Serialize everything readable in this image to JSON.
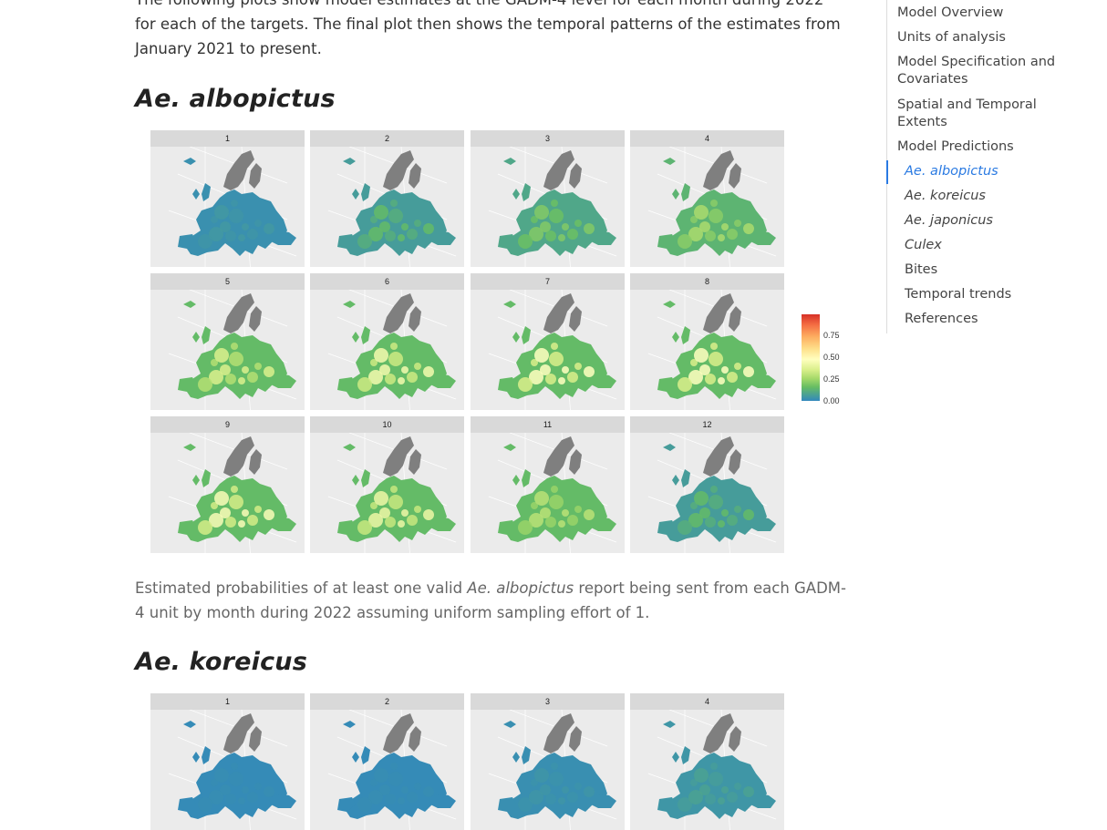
{
  "intro_text": "The following plots show model estimates at the GADM-4 level for each month during 2022 for each of the targets. The final plot then shows the temporal patterns of the estimates from January 2021 to present.",
  "sections": [
    {
      "heading": "Ae. albopictus",
      "panel_labels": [
        "1",
        "2",
        "3",
        "4",
        "5",
        "6",
        "7",
        "8",
        "9",
        "10",
        "11",
        "12"
      ],
      "probability_level_by_month": [
        0.05,
        0.12,
        0.18,
        0.26,
        0.38,
        0.46,
        0.5,
        0.5,
        0.48,
        0.44,
        0.3,
        0.12
      ],
      "caption_before": "Estimated probabilities of at least one valid ",
      "caption_species": "Ae. albopictus",
      "caption_after": " report being sent from each GADM-4 unit by month during 2022 assuming uniform sampling effort of 1."
    },
    {
      "heading": "Ae. koreicus",
      "panel_labels": [
        "1",
        "2",
        "3",
        "4"
      ],
      "probability_level_by_month": [
        0.02,
        0.02,
        0.04,
        0.08
      ]
    }
  ],
  "legend": {
    "ticks": [
      "0.75",
      "0.50",
      "0.25",
      "0.00"
    ],
    "color_scale": [
      "#3288bd",
      "#66bd63",
      "#a6d96a",
      "#d9ef8b",
      "#ffffbf",
      "#fee08b",
      "#fdae61",
      "#f46d43",
      "#d73027"
    ]
  },
  "toc": {
    "items": [
      {
        "label": "Model Overview",
        "level": 1
      },
      {
        "label": "Units of analysis",
        "level": 1
      },
      {
        "label": "Model Specification and Covariates",
        "level": 1
      },
      {
        "label": "Spatial and Temporal Extents",
        "level": 1
      },
      {
        "label": "Model Predictions",
        "level": 1
      },
      {
        "label": "Ae. albopictus",
        "level": 2,
        "italic": true,
        "active": true
      },
      {
        "label": "Ae. koreicus",
        "level": 2,
        "italic": true
      },
      {
        "label": "Ae. japonicus",
        "level": 2,
        "italic": true
      },
      {
        "label": "Culex",
        "level": 2,
        "italic": true
      },
      {
        "label": "Bites",
        "level": 2
      },
      {
        "label": "Temporal trends",
        "level": 2
      },
      {
        "label": "References",
        "level": 2
      }
    ]
  },
  "colors": {
    "accent": "#2a7ae2",
    "map_background": "#ebebeb",
    "scandinavia": "#7f7f7f"
  }
}
